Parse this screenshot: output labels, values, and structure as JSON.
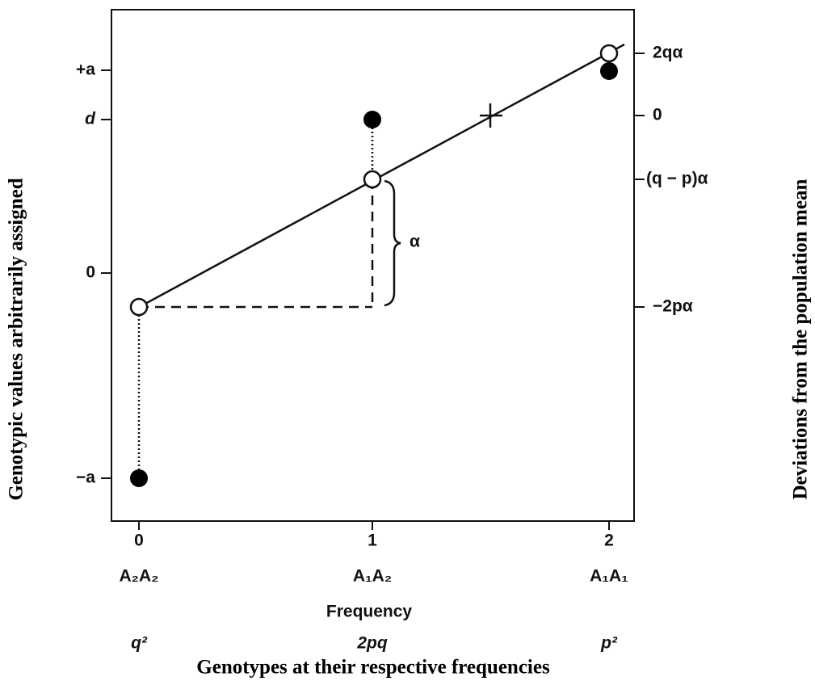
{
  "axes": {
    "left_title": "Genotypic values arbitrarily assigned",
    "right_title": "Deviations from the population mean",
    "bottom_title": "Genotypes at their respective frequencies",
    "left_ticks": [
      "+a",
      "d",
      "0",
      "−a"
    ],
    "right_ticks": [
      "2qα",
      "0",
      "(q − p)α",
      "−2pα"
    ],
    "x_ticks": [
      "0",
      "1",
      "2"
    ],
    "genotypes": [
      "A₂A₂",
      "A₁A₂",
      "A₁A₁"
    ],
    "frequency_label": "Frequency",
    "frequencies": [
      "q²",
      "2pq",
      "p²"
    ]
  },
  "annotation": "α"
}
